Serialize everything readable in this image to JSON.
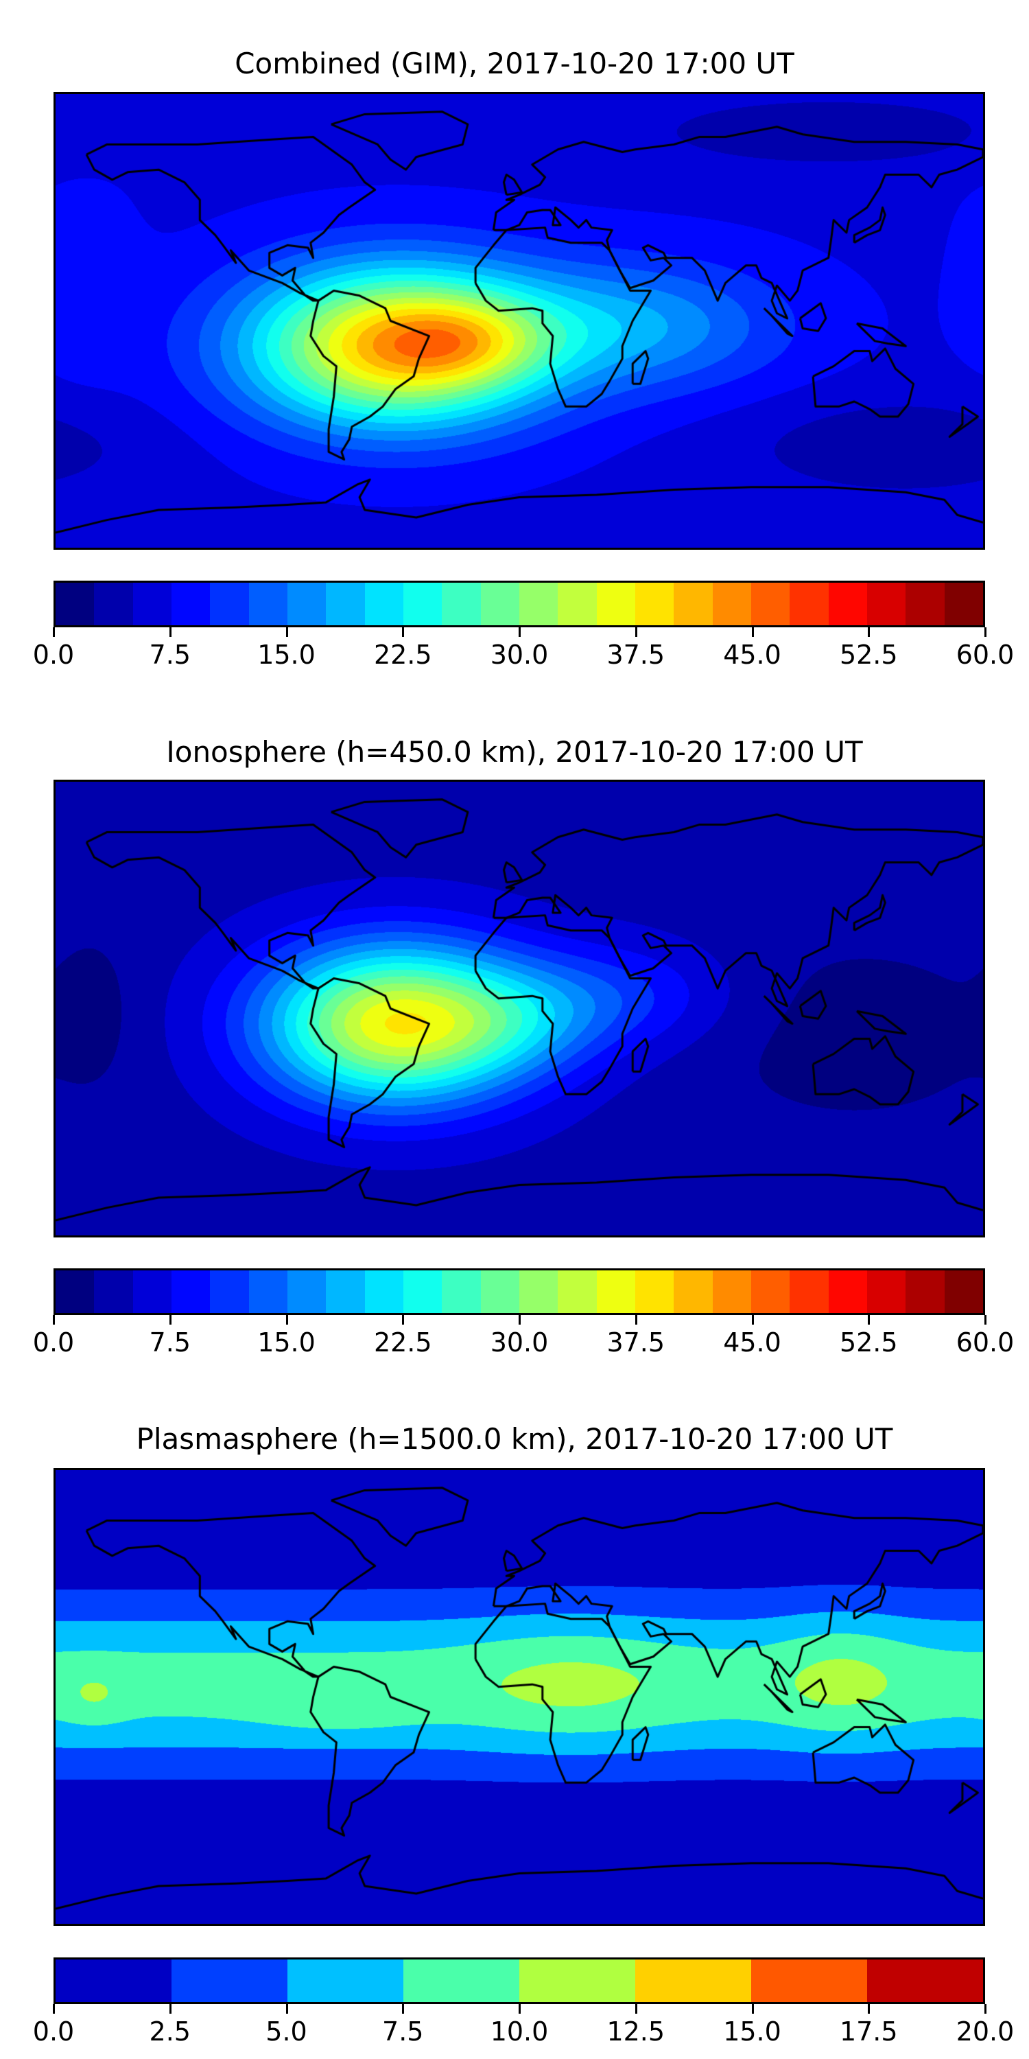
{
  "chart_data": [
    {
      "type": "heatmap",
      "title": "Combined (GIM), 2017-10-20 17:00 UT",
      "xlim": [
        -180,
        180
      ],
      "ylim": [
        -90,
        90
      ],
      "colorbar": {
        "min": 0,
        "max": 60,
        "step": 2.5,
        "tick_labels": [
          "0.0",
          "7.5",
          "15.0",
          "22.5",
          "30.0",
          "37.5",
          "45.0",
          "52.5",
          "60.0"
        ]
      },
      "field": {
        "base": 7,
        "features": [
          {
            "lon": -48,
            "lat": -10,
            "amp": 34,
            "slon": 40,
            "slat": 22
          },
          {
            "lon": -20,
            "lat": -8,
            "amp": 8,
            "slon": 22,
            "slat": 12
          },
          {
            "lon": 45,
            "lat": -2,
            "amp": 10,
            "slon": 40,
            "slat": 18
          },
          {
            "lon": 150,
            "lat": -50,
            "amp": -4,
            "slon": 45,
            "slat": 14
          },
          {
            "lon": 120,
            "lat": 75,
            "amp": -4,
            "slon": 50,
            "slat": 10
          },
          {
            "lon": -170,
            "lat": 15,
            "amp": 2,
            "slon": 15,
            "slat": 30
          }
        ]
      }
    },
    {
      "type": "heatmap",
      "title": "Ionosphere  (h=450.0 km), 2017-10-20 17:00 UT",
      "xlim": [
        -180,
        180
      ],
      "ylim": [
        -90,
        90
      ],
      "colorbar": {
        "min": 0,
        "max": 60,
        "step": 2.5,
        "tick_labels": [
          "0.0",
          "7.5",
          "15.0",
          "22.5",
          "30.0",
          "37.5",
          "45.0",
          "52.5",
          "60.0"
        ]
      },
      "field": {
        "base": 4,
        "features": [
          {
            "lon": -48,
            "lat": -6,
            "amp": 33,
            "slon": 36,
            "slat": 22
          },
          {
            "lon": 0,
            "lat": -5,
            "amp": 6,
            "slon": 25,
            "slat": 15
          },
          {
            "lon": 40,
            "lat": 5,
            "amp": 6,
            "slon": 30,
            "slat": 15
          },
          {
            "lon": 130,
            "lat": -10,
            "amp": -2.5,
            "slon": 50,
            "slat": 30
          },
          {
            "lon": -165,
            "lat": 0,
            "amp": -2,
            "slon": 10,
            "slat": 20
          }
        ]
      }
    },
    {
      "type": "heatmap",
      "title": "Plasmasphere (h=1500.0 km), 2017-10-20 17:00 UT",
      "xlim": [
        -180,
        180
      ],
      "ylim": [
        -90,
        90
      ],
      "colorbar": {
        "min": 0,
        "max": 20,
        "step": 2.5,
        "tick_labels": [
          "0.0",
          "2.5",
          "5.0",
          "7.5",
          "10.0",
          "12.5",
          "15.0",
          "17.5",
          "20.0"
        ]
      },
      "field": {
        "base": 0,
        "band": {
          "lat": 5,
          "amp": 8.6,
          "slat": 24
        },
        "features": [
          {
            "lon": 20,
            "lat": 5,
            "amp": 2.2,
            "slon": 28,
            "slat": 18
          },
          {
            "lon": 125,
            "lat": 8,
            "amp": 2.3,
            "slon": 18,
            "slat": 18
          },
          {
            "lon": -165,
            "lat": 0,
            "amp": 1.8,
            "slon": 9,
            "slat": 8
          },
          {
            "lon": -70,
            "lat": -5,
            "amp": 1.7,
            "slon": 22,
            "slat": 7
          }
        ]
      }
    }
  ],
  "colormaps": {
    "jet24": "generated",
    "plasma8": [
      "#0000C4",
      "#0040FF",
      "#00C0FF",
      "#4AFFAA",
      "#B0FF40",
      "#FFD000",
      "#FF5800",
      "#C00000"
    ]
  }
}
